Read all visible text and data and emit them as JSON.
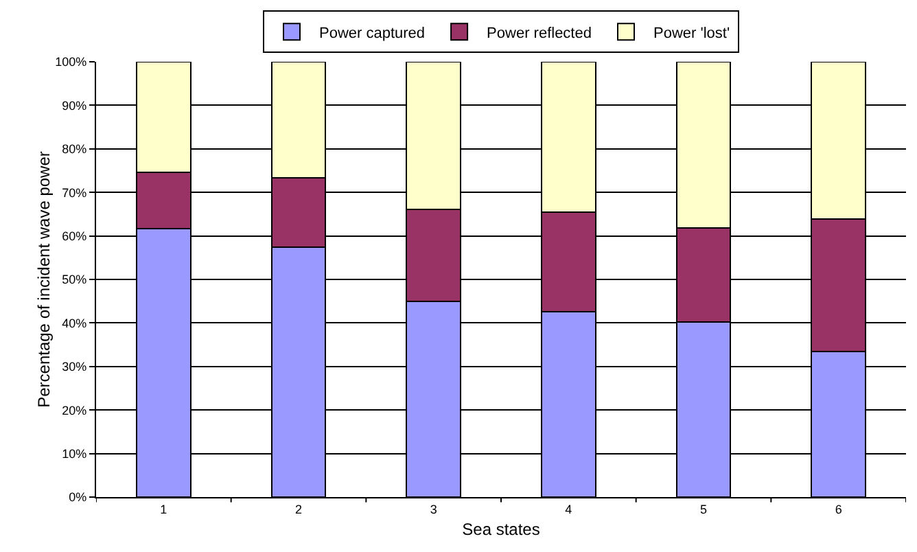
{
  "chart_data": {
    "type": "bar",
    "stacked": true,
    "xlabel": "Sea states",
    "ylabel": "Percentage of incident wave power",
    "categories": [
      "1",
      "2",
      "3",
      "4",
      "5",
      "6"
    ],
    "series": [
      {
        "name": "Power captured",
        "color": "#9999ff",
        "values": [
          61.7,
          57.4,
          45.0,
          42.6,
          40.2,
          33.5
        ]
      },
      {
        "name": "Power reflected",
        "color": "#993366",
        "values": [
          12.9,
          15.9,
          21.1,
          22.8,
          21.7,
          30.4
        ]
      },
      {
        "name": "Power 'lost'",
        "color": "#ffffcc",
        "values": [
          25.4,
          26.7,
          33.9,
          34.6,
          38.1,
          36.1
        ]
      }
    ],
    "ylim": [
      0,
      100
    ],
    "yticks": [
      {
        "value": 0,
        "label": "0%"
      },
      {
        "value": 10,
        "label": "10%"
      },
      {
        "value": 20,
        "label": "20%"
      },
      {
        "value": 30,
        "label": "30%"
      },
      {
        "value": 40,
        "label": "40%"
      },
      {
        "value": 50,
        "label": "50%"
      },
      {
        "value": 60,
        "label": "60%"
      },
      {
        "value": 70,
        "label": "70%"
      },
      {
        "value": 80,
        "label": "80%"
      },
      {
        "value": 90,
        "label": "90%"
      },
      {
        "value": 100,
        "label": "100%"
      }
    ],
    "grid": "y",
    "legend": "top"
  }
}
